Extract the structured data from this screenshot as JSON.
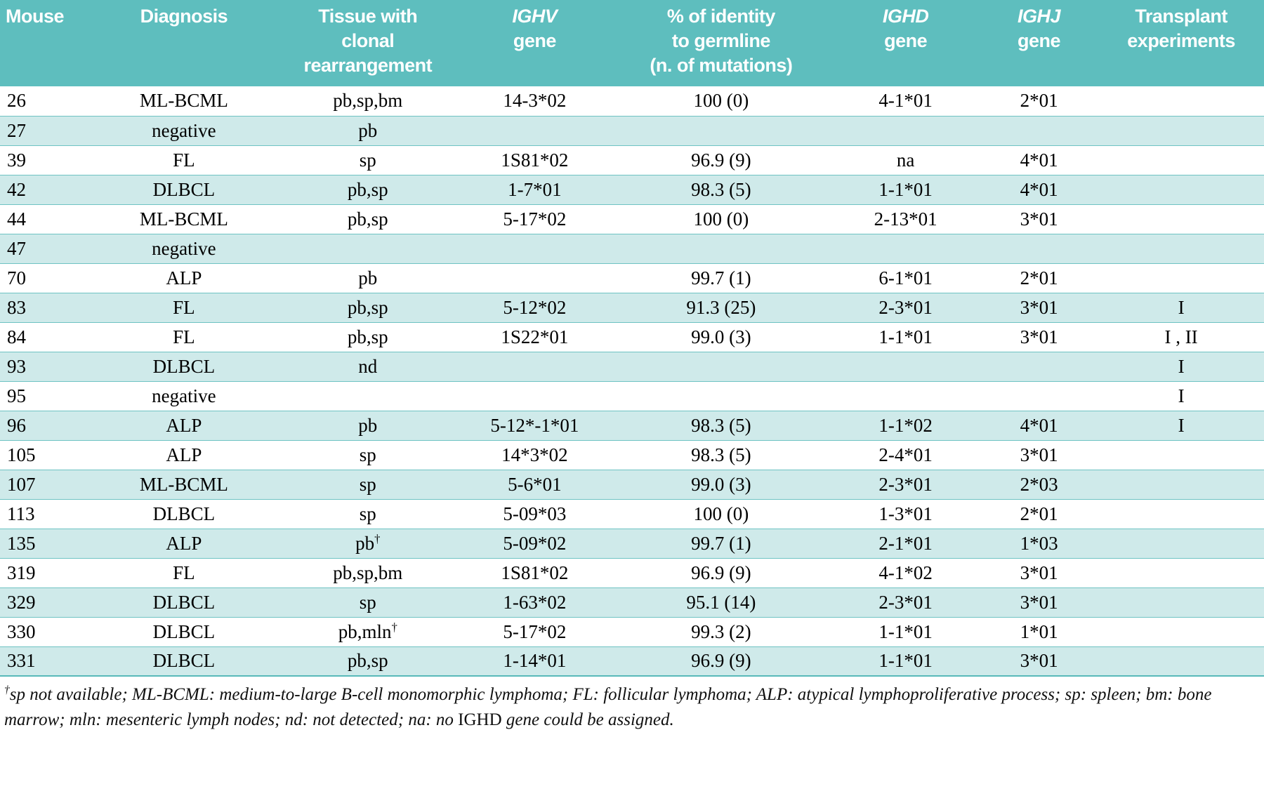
{
  "colors": {
    "header_bg": "#5ebebe",
    "header_text": "#ffffff",
    "row_alt_bg": "#cfeaea",
    "row_border": "#6ec3c3",
    "body_text": "#000000"
  },
  "table": {
    "columns": [
      {
        "lines": [
          {
            "text": "Mouse",
            "italic": false
          }
        ]
      },
      {
        "lines": [
          {
            "text": "Diagnosis",
            "italic": false
          }
        ]
      },
      {
        "lines": [
          {
            "text": "Tissue with",
            "italic": false
          },
          {
            "text": "clonal rearrangement",
            "italic": false
          }
        ]
      },
      {
        "lines": [
          {
            "text": "IGHV",
            "italic": true
          },
          {
            "text": "gene",
            "italic": false
          }
        ]
      },
      {
        "lines": [
          {
            "text": "% of identity",
            "italic": false
          },
          {
            "text": "to germline",
            "italic": false
          },
          {
            "text": "(n. of mutations)",
            "italic": false
          }
        ]
      },
      {
        "lines": [
          {
            "text": "IGHD",
            "italic": true
          },
          {
            "text": "gene",
            "italic": false
          }
        ]
      },
      {
        "lines": [
          {
            "text": "IGHJ",
            "italic": true
          },
          {
            "text": "gene",
            "italic": false
          }
        ]
      },
      {
        "lines": [
          {
            "text": "Transplant",
            "italic": false
          },
          {
            "text": "experiments",
            "italic": false
          }
        ]
      }
    ],
    "rows": [
      [
        "26",
        "ML-BCML",
        "pb,sp,bm",
        "14-3*02",
        "100 (0)",
        "4-1*01",
        "2*01",
        ""
      ],
      [
        "27",
        "negative",
        "pb",
        "",
        "",
        "",
        "",
        ""
      ],
      [
        "39",
        "FL",
        "sp",
        "1S81*02",
        "96.9 (9)",
        "na",
        "4*01",
        ""
      ],
      [
        "42",
        "DLBCL",
        "pb,sp",
        "1-7*01",
        "98.3 (5)",
        "1-1*01",
        "4*01",
        ""
      ],
      [
        "44",
        "ML-BCML",
        "pb,sp",
        "5-17*02",
        "100 (0)",
        "2-13*01",
        "3*01",
        ""
      ],
      [
        "47",
        "negative",
        "",
        "",
        "",
        "",
        "",
        ""
      ],
      [
        "70",
        "ALP",
        "pb",
        "",
        "99.7 (1)",
        "6-1*01",
        "2*01",
        ""
      ],
      [
        "83",
        "FL",
        "pb,sp",
        "5-12*02",
        "91.3 (25)",
        "2-3*01",
        "3*01",
        "I"
      ],
      [
        "84",
        "FL",
        "pb,sp",
        "1S22*01",
        "99.0 (3)",
        "1-1*01",
        "3*01",
        "I , II"
      ],
      [
        "93",
        "DLBCL",
        "nd",
        "",
        "",
        "",
        "",
        "I"
      ],
      [
        "95",
        "negative",
        "",
        "",
        "",
        "",
        "",
        "I"
      ],
      [
        "96",
        "ALP",
        "pb",
        "5-12*-1*01",
        "98.3 (5)",
        "1-1*02",
        "4*01",
        "I"
      ],
      [
        "105",
        "ALP",
        "sp",
        "14*3*02",
        "98.3 (5)",
        "2-4*01",
        "3*01",
        ""
      ],
      [
        "107",
        "ML-BCML",
        "sp",
        "5-6*01",
        "99.0 (3)",
        "2-3*01",
        "2*03",
        ""
      ],
      [
        "113",
        "DLBCL",
        "sp",
        "5-09*03",
        "100 (0)",
        "1-3*01",
        "2*01",
        ""
      ],
      [
        "135",
        "ALP",
        "pb†",
        "5-09*02",
        "99.7 (1)",
        "2-1*01",
        "1*03",
        ""
      ],
      [
        "319",
        "FL",
        "pb,sp,bm",
        "1S81*02",
        "96.9 (9)",
        "4-1*02",
        "3*01",
        ""
      ],
      [
        "329",
        "DLBCL",
        "sp",
        "1-63*02",
        "95.1 (14)",
        "2-3*01",
        "3*01",
        ""
      ],
      [
        "330",
        "DLBCL",
        "pb,mln†",
        "5-17*02",
        "99.3 (2)",
        "1-1*01",
        "1*01",
        ""
      ],
      [
        "331",
        "DLBCL",
        "pb,sp",
        "1-14*01",
        "96.9 (9)",
        "1-1*01",
        "3*01",
        ""
      ]
    ],
    "footnote": {
      "dagger": "†",
      "before_gene": "sp not available; ML-BCML: medium-to-large B-cell monomorphic lymphoma; FL: follicular lymphoma; ALP: atypical lymphoproliferative process; sp: spleen; bm: bone marrow; mln: mesenteric lymph nodes; nd: not detected; na: no ",
      "gene": "IGHD",
      "after_gene": " gene could be assigned."
    }
  }
}
